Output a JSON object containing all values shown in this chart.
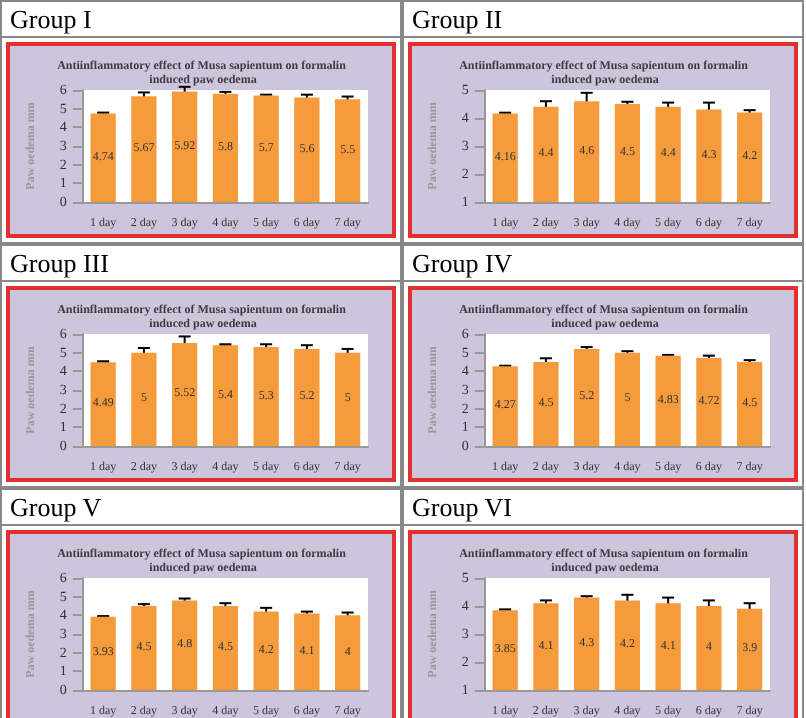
{
  "chart_data": [
    {
      "type": "bar",
      "title": "Group I",
      "subtitle": "Antiinflammatory effect of Musa sapientum on formalin induced paw oedema",
      "ylabel": "Paw oedema mm",
      "categories": [
        "1 day",
        "2 day",
        "3 day",
        "4 day",
        "5 day",
        "6 day",
        "7 day"
      ],
      "values": [
        4.74,
        5.67,
        5.92,
        5.8,
        5.7,
        5.6,
        5.5
      ],
      "errors": [
        0.05,
        0.2,
        0.25,
        0.1,
        0.05,
        0.15,
        0.15
      ],
      "color": "#f59b3c",
      "ylim": [
        0,
        6
      ],
      "yticks": [
        0,
        1,
        2,
        3,
        4,
        5,
        6
      ],
      "data_labels": true
    },
    {
      "type": "bar",
      "title": "Group  II",
      "subtitle": "Antiinflammatory effect of Musa sapientum on formalin induced paw oedema",
      "ylabel": "Paw oedema mm",
      "categories": [
        "1 day",
        "2 day",
        "3 day",
        "4 day",
        "5 day",
        "6 day",
        "7 day"
      ],
      "values": [
        4.16,
        4.4,
        4.6,
        4.5,
        4.4,
        4.3,
        4.2
      ],
      "errors": [
        0.03,
        0.2,
        0.3,
        0.08,
        0.15,
        0.25,
        0.08
      ],
      "color": "#f59b3c",
      "ylim": [
        1,
        5
      ],
      "yticks": [
        1,
        2,
        3,
        4,
        5
      ],
      "data_labels": true
    },
    {
      "type": "bar",
      "title": "Group  III",
      "subtitle": "Antiinflammatory effect of Musa sapientum on formalin induced paw oedema",
      "ylabel": "Paw oedema mm",
      "categories": [
        "1 day",
        "2 day",
        "3 day",
        "4 day",
        "5 day",
        "6 day",
        "7 day"
      ],
      "values": [
        4.49,
        5,
        5.52,
        5.4,
        5.3,
        5.2,
        5
      ],
      "errors": [
        0.05,
        0.25,
        0.35,
        0.05,
        0.15,
        0.2,
        0.2
      ],
      "color": "#f59b3c",
      "ylim": [
        0,
        6
      ],
      "yticks": [
        0,
        1,
        2,
        3,
        4,
        5,
        6
      ],
      "data_labels": true
    },
    {
      "type": "bar",
      "title": "Group  IV",
      "subtitle": "Antiinflammatory effect of Musa sapientum on formalin induced paw oedema",
      "ylabel": "Paw oedema mm",
      "categories": [
        "1 day",
        "2 day",
        "3 day",
        "4 day",
        "5 day",
        "6 day",
        "7 day"
      ],
      "values": [
        4.27,
        4.5,
        5.2,
        5,
        4.83,
        4.72,
        4.5
      ],
      "errors": [
        0.03,
        0.2,
        0.1,
        0.08,
        0.05,
        0.12,
        0.1
      ],
      "color": "#f59b3c",
      "ylim": [
        0,
        6
      ],
      "yticks": [
        0,
        1,
        2,
        3,
        4,
        5,
        6
      ],
      "data_labels": true
    },
    {
      "type": "bar",
      "title": "Group  V",
      "subtitle": "Antiinflammatory effect of Musa sapientum on formalin induced paw oedema",
      "ylabel": "Paw oedema mm",
      "categories": [
        "1 day",
        "2 day",
        "3 day",
        "4 day",
        "5 day",
        "6 day",
        "7 day"
      ],
      "values": [
        3.93,
        4.5,
        4.8,
        4.5,
        4.2,
        4.1,
        4
      ],
      "errors": [
        0.03,
        0.1,
        0.1,
        0.15,
        0.2,
        0.1,
        0.15
      ],
      "color": "#f59b3c",
      "ylim": [
        0,
        6
      ],
      "yticks": [
        0,
        1,
        2,
        3,
        4,
        5,
        6
      ],
      "data_labels": true
    },
    {
      "type": "bar",
      "title": "Group  VI",
      "subtitle": "Antiinflammatory effect of Musa sapientum on formalin induced paw oedema",
      "ylabel": "Paw oedema mm",
      "categories": [
        "1 day",
        "2 day",
        "3 day",
        "4 day",
        "5 day",
        "6 day",
        "7 day"
      ],
      "values": [
        3.85,
        4.1,
        4.3,
        4.2,
        4.1,
        4,
        3.9
      ],
      "errors": [
        0.03,
        0.1,
        0.05,
        0.2,
        0.2,
        0.2,
        0.2
      ],
      "color": "#f59b3c",
      "ylim": [
        1,
        5
      ],
      "yticks": [
        1,
        2,
        3,
        4,
        5
      ],
      "data_labels": true
    }
  ]
}
